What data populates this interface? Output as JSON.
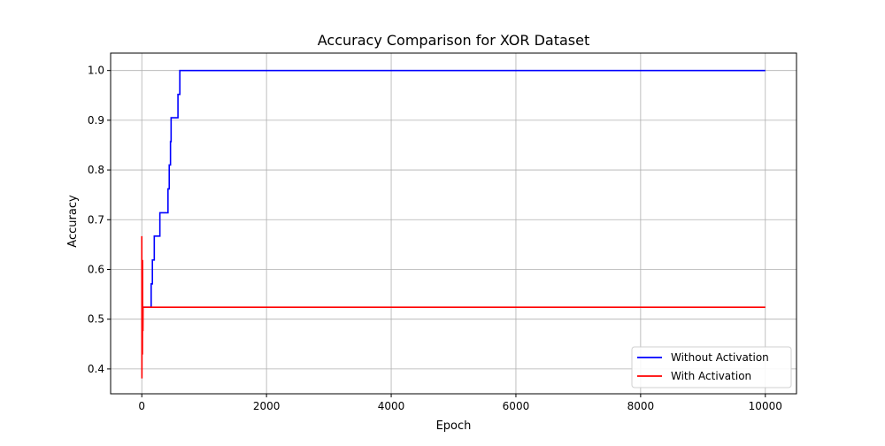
{
  "chart_data": {
    "type": "line",
    "title": "Accuracy Comparison for XOR Dataset",
    "xlabel": "Epoch",
    "ylabel": "Accuracy",
    "xlim": [
      -500,
      10500
    ],
    "ylim": [
      0.35,
      1.035
    ],
    "xticks": [
      0,
      2000,
      4000,
      6000,
      8000,
      10000
    ],
    "yticks": [
      0.4,
      0.5,
      0.6,
      0.7,
      0.8,
      0.9,
      1.0
    ],
    "grid": true,
    "legend_position": "bottom-right",
    "series": [
      {
        "name": "Without Activation",
        "color": "#0000ff",
        "x": [
          0,
          150,
          150,
          170,
          170,
          200,
          200,
          240,
          240,
          290,
          290,
          350,
          350,
          420,
          420,
          440,
          440,
          460,
          460,
          470,
          470,
          580,
          580,
          610,
          610,
          10000
        ],
        "y": [
          0.524,
          0.524,
          0.571,
          0.571,
          0.619,
          0.619,
          0.667,
          0.667,
          0.667,
          0.667,
          0.714,
          0.714,
          0.714,
          0.714,
          0.762,
          0.762,
          0.81,
          0.81,
          0.857,
          0.857,
          0.905,
          0.905,
          0.952,
          0.952,
          1.0,
          1.0
        ]
      },
      {
        "name": "With Activation",
        "color": "#ff0000",
        "x": [
          0,
          2,
          4,
          6,
          8,
          10,
          12,
          14,
          16,
          18,
          20,
          24,
          28,
          10000
        ],
        "y": [
          0.667,
          0.381,
          0.619,
          0.476,
          0.571,
          0.429,
          0.619,
          0.476,
          0.524,
          0.476,
          0.524,
          0.524,
          0.524,
          0.524
        ]
      }
    ]
  }
}
